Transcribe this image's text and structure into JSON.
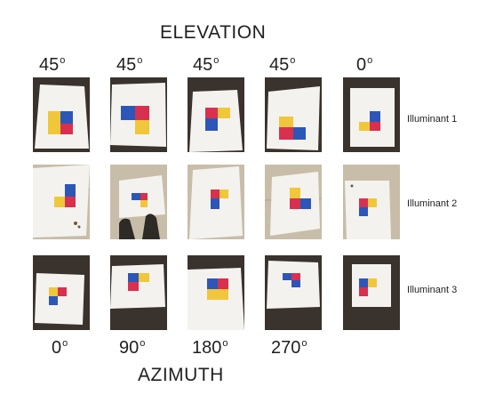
{
  "elevation_title": "ELEVATION",
  "azimuth_title": "AZIMUTH",
  "elevation_angles": [
    {
      "value": "45",
      "unit": "o"
    },
    {
      "value": "45",
      "unit": "o"
    },
    {
      "value": "45",
      "unit": "o"
    },
    {
      "value": "45",
      "unit": "o"
    },
    {
      "value": "0",
      "unit": "o"
    }
  ],
  "azimuth_angles": [
    {
      "value": "0",
      "unit": "o"
    },
    {
      "value": "90",
      "unit": "o"
    },
    {
      "value": "180",
      "unit": "o"
    },
    {
      "value": "270",
      "unit": "o"
    }
  ],
  "illuminants": [
    {
      "label": "Illuminant 1"
    },
    {
      "label": "Illuminant 2"
    },
    {
      "label": "Illuminant 3"
    }
  ],
  "colors": {
    "blue": "#2c56b8",
    "red": "#d9304f",
    "yellow": "#f0c73a",
    "paper": "#f4f2ee",
    "dark_floor": "#3a322c",
    "tile_floor": "#c8bda8"
  }
}
